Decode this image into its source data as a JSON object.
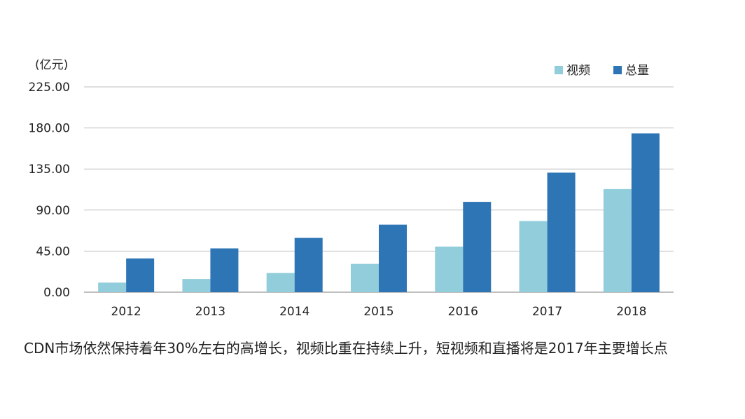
{
  "chart_data": {
    "type": "bar",
    "unit_label": "(亿元)",
    "categories": [
      "2012",
      "2013",
      "2014",
      "2015",
      "2016",
      "2017",
      "2018"
    ],
    "series": [
      {
        "name": "视频",
        "color": "#92cddc",
        "values": [
          10.5,
          14.5,
          21,
          31,
          50,
          78,
          113
        ]
      },
      {
        "name": "总量",
        "color": "#2e75b6",
        "values": [
          37,
          48,
          59.5,
          74,
          99,
          131,
          174
        ]
      }
    ],
    "ylim": [
      0,
      225
    ],
    "yticks": [
      0,
      45,
      90,
      135,
      180,
      225
    ],
    "ytick_labels": [
      "0.00",
      "45.00",
      "90.00",
      "135.00",
      "180.00",
      "225.00"
    ],
    "grid": true,
    "legend": "top-right"
  },
  "caption": "CDN市场依然保持着年30%左右的高增长，视频比重在持续上升，短视频和直播将是2017年主要增长点"
}
